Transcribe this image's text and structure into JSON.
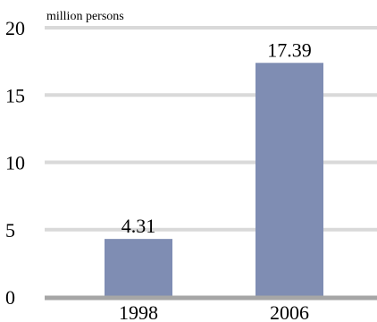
{
  "chart_data": {
    "type": "bar",
    "unit_label": "million persons",
    "categories": [
      "1998",
      "2006"
    ],
    "values": [
      4.31,
      17.39
    ],
    "value_labels": [
      "4.31",
      "17.39"
    ],
    "ylim": [
      0,
      20
    ],
    "yticks": [
      0,
      5,
      10,
      15,
      20
    ],
    "ytick_labels": [
      "0",
      "5",
      "10",
      "15",
      "20"
    ],
    "grid": true,
    "colors": {
      "bar": "#7f8db3",
      "grid": "#d9d9d9",
      "baseline": "#a6a6a6"
    }
  }
}
